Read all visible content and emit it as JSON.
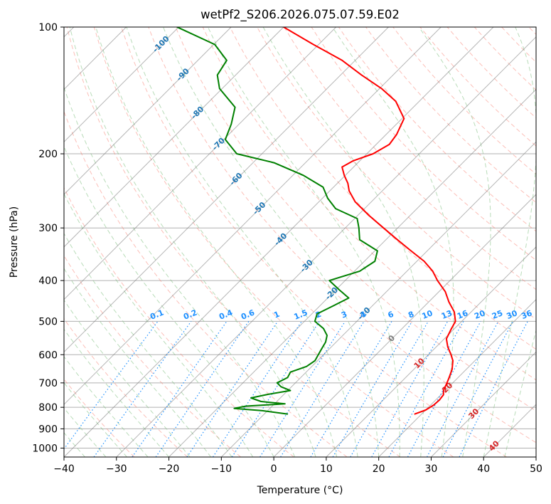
{
  "chart_data": {
    "type": "line",
    "title": "wetPf2_S206.2026.075.07.59.E02",
    "xlabel": "Temperature (°C)",
    "ylabel": "Pressure (hPa)",
    "xlim": [
      -40,
      50
    ],
    "ylim": [
      1050,
      100
    ],
    "y_scale": "log",
    "grid": true,
    "x_ticks": [
      -40,
      -30,
      -20,
      -10,
      0,
      10,
      20,
      30,
      40,
      50
    ],
    "y_ticks": [
      100,
      200,
      300,
      400,
      500,
      600,
      700,
      800,
      900,
      1000
    ],
    "skew": 45,
    "colors": {
      "temperature": "#ff0000",
      "dewpoint": "#008000",
      "dry_adiabat": "#fa8072",
      "moist_adiabat": "#7fbf7f",
      "mixing_ratio": "#1e90ff",
      "isotherm": "#7a7a7a",
      "isotherm_label": "#1f77b4",
      "theta_label": "#d62728"
    },
    "series": [
      {
        "key": "temperature",
        "pressure": [
          830,
          812,
          790,
          768,
          747,
          730,
          700,
          680,
          650,
          620,
          600,
          575,
          550,
          520,
          500,
          475,
          450,
          425,
          400,
          380,
          360,
          340,
          320,
          300,
          280,
          260,
          245,
          235,
          225,
          215,
          208,
          200,
          190,
          180,
          165,
          150,
          140,
          130,
          120,
          110,
          100
        ],
        "values": [
          18.7,
          20.0,
          20.6,
          20.7,
          20.5,
          19.7,
          18.9,
          18.3,
          17.3,
          15.8,
          14.3,
          12.2,
          10.4,
          9.4,
          8.8,
          6.8,
          3.9,
          1.2,
          -2.4,
          -5.1,
          -8.6,
          -13.1,
          -17.8,
          -22.7,
          -27.9,
          -33.1,
          -36.3,
          -38.0,
          -40.2,
          -42.2,
          -41.3,
          -38.8,
          -37.5,
          -38.0,
          -39.6,
          -44.5,
          -49.6,
          -56.0,
          -62.5,
          -71.0,
          -80.0
        ]
      },
      {
        "key": "dewpoint",
        "pressure": [
          830,
          815,
          805,
          795,
          785,
          775,
          760,
          745,
          730,
          715,
          700,
          680,
          660,
          640,
          620,
          600,
          580,
          560,
          540,
          520,
          500,
          480,
          460,
          440,
          420,
          400,
          380,
          360,
          340,
          320,
          300,
          285,
          270,
          255,
          240,
          225,
          210,
          200,
          185,
          170,
          155,
          140,
          130,
          120,
          110,
          100
        ],
        "values": [
          -5.6,
          -11.0,
          -16.8,
          -15.0,
          -8.0,
          -13.0,
          -15.6,
          -13.0,
          -9.5,
          -12.0,
          -13.5,
          -12.5,
          -13.0,
          -11.0,
          -10.5,
          -11.0,
          -11.5,
          -12.0,
          -13.0,
          -15.0,
          -18.0,
          -19.0,
          -17.5,
          -16.0,
          -19.5,
          -23.0,
          -19.0,
          -18.0,
          -19.5,
          -25.0,
          -27.4,
          -29.5,
          -35.5,
          -39.0,
          -42.0,
          -48.0,
          -56.0,
          -64.8,
          -69.7,
          -71.5,
          -74.0,
          -80.5,
          -83.5,
          -84.5,
          -89.8,
          -100.3
        ]
      }
    ],
    "isotherm_labels": [
      "-100",
      "-90",
      "-80",
      "-70",
      "-60",
      "-50",
      "-40",
      "-30",
      "-20",
      "-10",
      "0",
      "10",
      "20",
      "30",
      "40"
    ],
    "mixing_ratio_labels": [
      "0.1",
      "0.2",
      "0.4",
      "0.6",
      "1",
      "1.5",
      "2",
      "3",
      "4",
      "6",
      "8",
      "10",
      "13",
      "16",
      "20",
      "25",
      "30",
      "36"
    ]
  }
}
